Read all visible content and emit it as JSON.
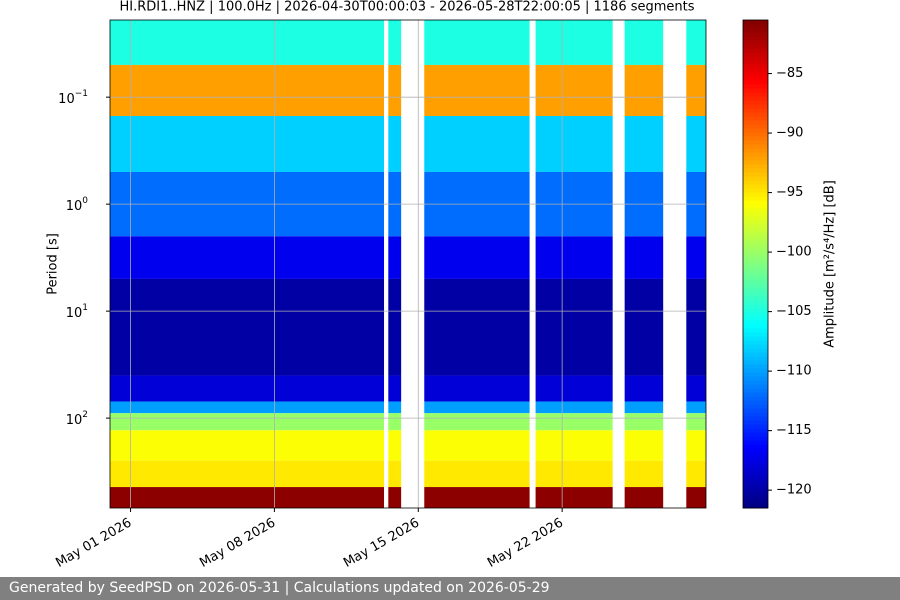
{
  "chart_data": {
    "type": "spectrogram",
    "title": "HI.RDI1..HNZ | 100.0Hz | 2026-04-30T00:00:03 - 2026-05-28T22:00:05 | 1186 segments",
    "ylabel": "Period [s]",
    "colorbar_label": "Amplitude [m²/s⁴/Hz] [dB]",
    "xlim": [
      "2026-04-30T00:00",
      "2026-05-29T00:00"
    ],
    "xticks": [
      {
        "value": "2026-05-01T00:00",
        "label": "May 01 2026"
      },
      {
        "value": "2026-05-08T00:00",
        "label": "May 08 2026"
      },
      {
        "value": "2026-05-15T00:00",
        "label": "May 15 2026"
      },
      {
        "value": "2026-05-22T00:00",
        "label": "May 22 2026"
      }
    ],
    "ylim": [
      0.019,
      692
    ],
    "log_y": true,
    "yticks": [
      {
        "value": 0.1,
        "label": "10",
        "exponent": "−1"
      },
      {
        "value": 1,
        "label": "10",
        "exponent": "0"
      },
      {
        "value": 10,
        "label": "10",
        "exponent": "1"
      },
      {
        "value": 100,
        "label": "10",
        "exponent": "2"
      }
    ],
    "grid": true,
    "segments": [
      [
        "2026-04-30T00:00",
        "2026-05-13T08:00"
      ],
      [
        "2026-05-13T13:00",
        "2026-05-14T04:00"
      ],
      [
        "2026-05-15T07:00",
        "2026-05-20T10:00"
      ],
      [
        "2026-05-20T17:00",
        "2026-05-24T11:00"
      ],
      [
        "2026-05-25T01:00",
        "2026-05-26T22:00"
      ],
      [
        "2026-05-28T01:00",
        "2026-05-29T00:00"
      ]
    ],
    "bands": [
      {
        "min_period": 0.019,
        "max_period": 0.05,
        "amplitude": -105
      },
      {
        "min_period": 0.05,
        "max_period": 0.15,
        "amplitude": -92
      },
      {
        "min_period": 0.15,
        "max_period": 0.5,
        "amplitude": -108
      },
      {
        "min_period": 0.5,
        "max_period": 2,
        "amplitude": -112
      },
      {
        "min_period": 2,
        "max_period": 5,
        "amplitude": -117
      },
      {
        "min_period": 5,
        "max_period": 40,
        "amplitude": -120
      },
      {
        "min_period": 40,
        "max_period": 70,
        "amplitude": -118
      },
      {
        "min_period": 70,
        "max_period": 90,
        "amplitude": -110
      },
      {
        "min_period": 90,
        "max_period": 130,
        "amplitude": -100
      },
      {
        "min_period": 130,
        "max_period": 250,
        "amplitude": -96
      },
      {
        "min_period": 250,
        "max_period": 441,
        "amplitude": -95
      },
      {
        "min_period": 441,
        "max_period": 692,
        "amplitude": -81
      }
    ],
    "clim": [
      -121.5,
      -80.5
    ],
    "cticks": [
      {
        "value": -85,
        "label": "−85"
      },
      {
        "value": -90,
        "label": "−90"
      },
      {
        "value": -95,
        "label": "−95"
      },
      {
        "value": -100,
        "label": "−100"
      },
      {
        "value": -105,
        "label": "−105"
      },
      {
        "value": -110,
        "label": "−110"
      },
      {
        "value": -115,
        "label": "−115"
      },
      {
        "value": -120,
        "label": "−120"
      }
    ],
    "colormap": "jet"
  },
  "footer": "Generated by SeedPSD on 2026-05-31 | Calculations updated on 2026-05-29"
}
